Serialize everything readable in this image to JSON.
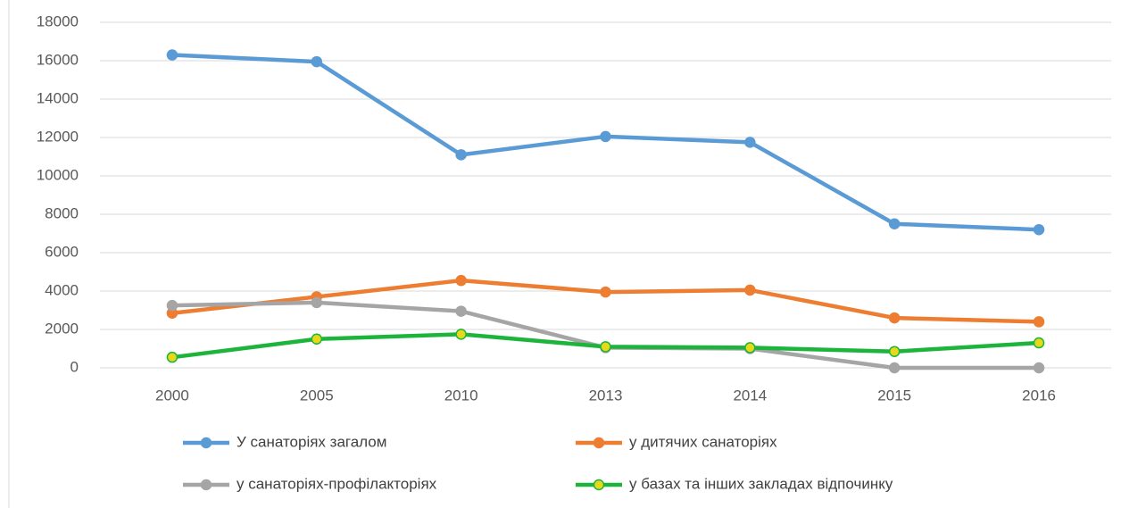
{
  "chart_data": {
    "type": "line",
    "categories": [
      "2000",
      "2005",
      "2010",
      "2013",
      "2014",
      "2015",
      "2016"
    ],
    "series": [
      {
        "name": "У санаторіях загалом",
        "color": "#5b9bd5",
        "values": [
          16300,
          15950,
          11100,
          12050,
          11750,
          7500,
          7200
        ]
      },
      {
        "name": "у дитячих санаторіях",
        "color": "#ed7d31",
        "values": [
          2850,
          3700,
          4550,
          3950,
          4050,
          2600,
          2400
        ]
      },
      {
        "name": "у санаторіях-профілакторіях",
        "color": "#a5a5a5",
        "values": [
          3250,
          3400,
          2950,
          1050,
          1000,
          0,
          0
        ]
      },
      {
        "name": "у базах та інших закладах відпочинку",
        "color": "#1db43c",
        "marker_color": "#e8d81a",
        "values": [
          550,
          1500,
          1750,
          1100,
          1050,
          850,
          1300
        ]
      }
    ],
    "ylim": [
      0,
      18000
    ],
    "yticks": [
      0,
      2000,
      4000,
      6000,
      8000,
      10000,
      12000,
      14000,
      16000,
      18000
    ],
    "grid": true,
    "legend": "bottom"
  }
}
